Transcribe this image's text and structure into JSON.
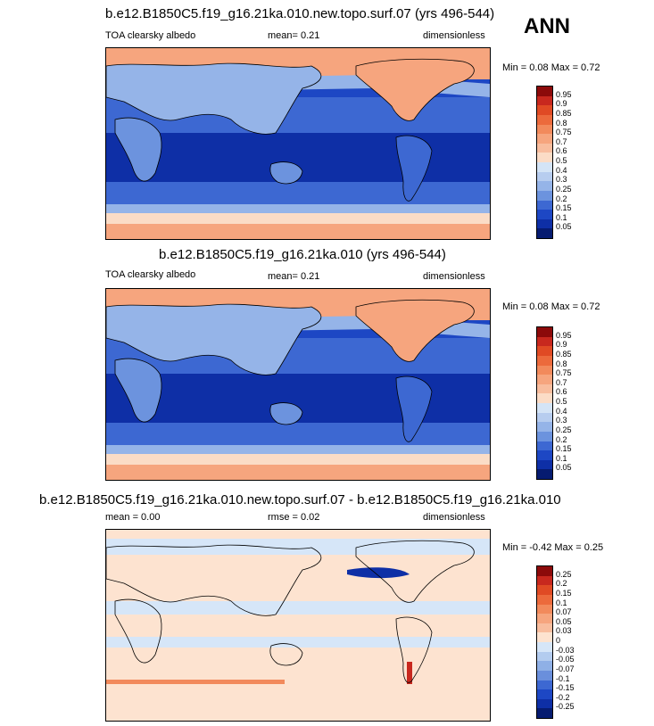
{
  "season": "ANN",
  "panels": [
    {
      "title": "b.e12.B1850C5.f19_g16.21ka.010.new.topo.surf.07 (yrs 496-544)",
      "left": "TOA clearsky albedo",
      "center": "mean=   0.21",
      "right": "dimensionless",
      "minmax": "Min =   0.08 Max =   0.72",
      "levels": [
        "0.95",
        "0.9",
        "0.85",
        "0.8",
        "0.75",
        "0.7",
        "0.6",
        "0.5",
        "0.4",
        "0.3",
        "0.25",
        "0.2",
        "0.15",
        "0.1",
        "0.05"
      ],
      "colors": [
        "#8c0a0a",
        "#c8281e",
        "#e04a24",
        "#ec6a3c",
        "#f28a5c",
        "#f6a57e",
        "#f8bd9e",
        "#fbdcc6",
        "#d4e4f6",
        "#b7cdef",
        "#95b4e8",
        "#6c93de",
        "#3d68d2",
        "#1d47c4",
        "#0e2fa6",
        "#061b70"
      ],
      "chart_data": {
        "type": "heatmap",
        "title": "b.e12.B1850C5.f19_g16.21ka.010.new.topo.surf.07 (yrs 496-544)",
        "variable": "TOA clearsky albedo",
        "units": "dimensionless",
        "mean": 0.21,
        "min": 0.08,
        "max": 0.72,
        "contour_levels": [
          0.05,
          0.1,
          0.15,
          0.2,
          0.25,
          0.3,
          0.4,
          0.5,
          0.6,
          0.7,
          0.75,
          0.8,
          0.85,
          0.9,
          0.95
        ]
      }
    },
    {
      "title": "b.e12.B1850C5.f19_g16.21ka.010 (yrs 496-544)",
      "left": "TOA clearsky albedo",
      "center": "mean=   0.21",
      "right": "dimensionless",
      "minmax": "Min =   0.08 Max =   0.72",
      "levels": [
        "0.95",
        "0.9",
        "0.85",
        "0.8",
        "0.75",
        "0.7",
        "0.6",
        "0.5",
        "0.4",
        "0.3",
        "0.25",
        "0.2",
        "0.15",
        "0.1",
        "0.05"
      ],
      "colors": [
        "#8c0a0a",
        "#c8281e",
        "#e04a24",
        "#ec6a3c",
        "#f28a5c",
        "#f6a57e",
        "#f8bd9e",
        "#fbdcc6",
        "#d4e4f6",
        "#b7cdef",
        "#95b4e8",
        "#6c93de",
        "#3d68d2",
        "#1d47c4",
        "#0e2fa6",
        "#061b70"
      ],
      "chart_data": {
        "type": "heatmap",
        "title": "b.e12.B1850C5.f19_g16.21ka.010 (yrs 496-544)",
        "variable": "TOA clearsky albedo",
        "units": "dimensionless",
        "mean": 0.21,
        "min": 0.08,
        "max": 0.72,
        "contour_levels": [
          0.05,
          0.1,
          0.15,
          0.2,
          0.25,
          0.3,
          0.4,
          0.5,
          0.6,
          0.7,
          0.75,
          0.8,
          0.85,
          0.9,
          0.95
        ]
      }
    },
    {
      "title": "b.e12.B1850C5.f19_g16.21ka.010.new.topo.surf.07 - b.e12.B1850C5.f19_g16.21ka.010",
      "left": "mean =   0.00",
      "center": "rmse =   0.02",
      "right": "dimensionless",
      "minmax": "Min =  -0.42 Max =   0.25",
      "levels": [
        "0.25",
        "0.2",
        "0.15",
        "0.1",
        "0.07",
        "0.05",
        "0.03",
        "0",
        "-0.03",
        "-0.05",
        "-0.07",
        "-0.1",
        "-0.15",
        "-0.2",
        "-0.25"
      ],
      "colors": [
        "#8c0a0a",
        "#c8281e",
        "#e04a24",
        "#ec6a3c",
        "#f28a5c",
        "#f6a57e",
        "#f8bd9e",
        "#fde3d0",
        "#d6e6f8",
        "#b3ccef",
        "#8fb0e6",
        "#6a8fdc",
        "#3d68d2",
        "#1d47c4",
        "#0e2fa6",
        "#061b70"
      ],
      "chart_data": {
        "type": "heatmap",
        "title": "b.e12.B1850C5.f19_g16.21ka.010.new.topo.surf.07 - b.e12.B1850C5.f19_g16.21ka.010",
        "units": "dimensionless",
        "mean": 0.0,
        "rmse": 0.02,
        "min": -0.42,
        "max": 0.25,
        "contour_levels": [
          -0.25,
          -0.2,
          -0.15,
          -0.1,
          -0.07,
          -0.05,
          -0.03,
          0,
          0.03,
          0.05,
          0.07,
          0.1,
          0.15,
          0.2,
          0.25
        ]
      }
    }
  ]
}
